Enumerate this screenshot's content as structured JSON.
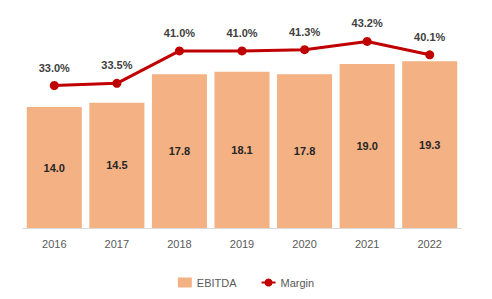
{
  "chart_data": {
    "type": "bar",
    "categories": [
      "2016",
      "2017",
      "2018",
      "2019",
      "2020",
      "2021",
      "2022"
    ],
    "series": [
      {
        "name": "EBITDA",
        "type": "bar",
        "color": "#F4B183",
        "values": [
          14.0,
          14.5,
          17.8,
          18.1,
          17.8,
          19.0,
          19.3
        ],
        "value_labels": [
          "14.0",
          "14.5",
          "17.8",
          "18.1",
          "17.8",
          "19.0",
          "19.3"
        ]
      },
      {
        "name": "Margin",
        "type": "line",
        "axis": "y2",
        "color": "#C00000",
        "marker": "circle",
        "values": [
          33.0,
          33.5,
          41.0,
          41.0,
          41.3,
          43.2,
          40.1
        ],
        "value_labels": [
          "33.0%",
          "33.5%",
          "41.0%",
          "41.0%",
          "41.3%",
          "43.2%",
          "40.1%"
        ]
      }
    ],
    "ylim": [
      0,
      22
    ],
    "yticks": [
      0,
      11,
      22
    ],
    "y2lim": [
      0,
      44
    ],
    "y2ticks": [
      0,
      22,
      44
    ],
    "grid": false,
    "legend": "bottom",
    "data_labels": true,
    "tick_labels": "x"
  }
}
